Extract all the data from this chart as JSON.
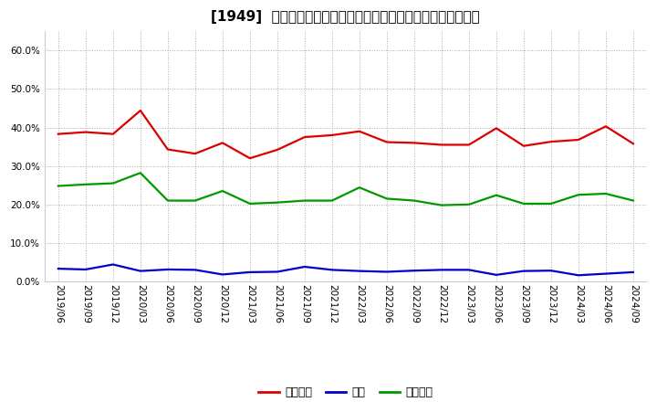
{
  "title": "[1949]  売上債権、在庫、買入債務の総資産に対する比率の推移",
  "x_labels": [
    "2019/06",
    "2019/09",
    "2019/12",
    "2020/03",
    "2020/06",
    "2020/09",
    "2020/12",
    "2021/03",
    "2021/06",
    "2021/09",
    "2021/12",
    "2022/03",
    "2022/06",
    "2022/09",
    "2022/12",
    "2023/03",
    "2023/06",
    "2023/09",
    "2023/12",
    "2024/03",
    "2024/06",
    "2024/09"
  ],
  "urikake": [
    0.383,
    0.388,
    0.383,
    0.444,
    0.343,
    0.332,
    0.36,
    0.32,
    0.342,
    0.375,
    0.38,
    0.39,
    0.362,
    0.36,
    0.355,
    0.355,
    0.398,
    0.352,
    0.363,
    0.368,
    0.403,
    0.358
  ],
  "zaiko": [
    0.033,
    0.031,
    0.044,
    0.027,
    0.031,
    0.03,
    0.018,
    0.024,
    0.025,
    0.038,
    0.03,
    0.027,
    0.025,
    0.028,
    0.03,
    0.03,
    0.017,
    0.027,
    0.028,
    0.016,
    0.02,
    0.024
  ],
  "kaiire": [
    0.248,
    0.252,
    0.255,
    0.282,
    0.21,
    0.21,
    0.235,
    0.202,
    0.205,
    0.21,
    0.21,
    0.244,
    0.215,
    0.21,
    0.198,
    0.2,
    0.224,
    0.202,
    0.202,
    0.225,
    0.228,
    0.21
  ],
  "urikake_color": "#dd0000",
  "zaiko_color": "#0000cc",
  "kaiire_color": "#009900",
  "background_color": "#ffffff",
  "plot_bg_color": "#ffffff",
  "grid_color": "#aaaaaa",
  "ylim": [
    0.0,
    0.65
  ],
  "yticks": [
    0.0,
    0.1,
    0.2,
    0.3,
    0.4,
    0.5,
    0.6
  ],
  "legend_labels": [
    "売上債権",
    "在庫",
    "買入債務"
  ],
  "linewidth": 1.6,
  "title_fontsize": 11,
  "tick_fontsize": 7.5,
  "legend_fontsize": 9
}
